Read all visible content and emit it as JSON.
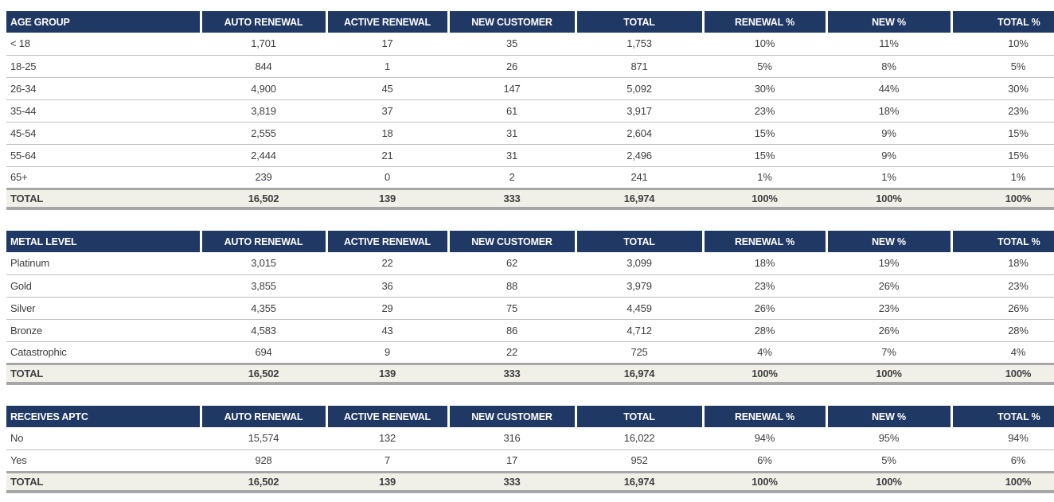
{
  "colors": {
    "header_bg": "#1F3864",
    "header_text": "#FFFFFF",
    "body_text": "#3F3F3F",
    "thin_line": "#BFBFBF",
    "thick_line": "#A6A6A6",
    "total_row_bg": "#F0EFE8"
  },
  "value_columns": [
    "AUTO RENEWAL",
    "ACTIVE RENEWAL",
    "NEW CUSTOMER",
    "TOTAL",
    "RENEWAL %",
    "NEW %",
    "TOTAL %"
  ],
  "tables": [
    {
      "label": "AGE GROUP",
      "rows": [
        {
          "label": "< 18",
          "values": [
            "1,701",
            "17",
            "35",
            "1,753",
            "10%",
            "11%",
            "10%"
          ]
        },
        {
          "label": "18-25",
          "values": [
            "844",
            "1",
            "26",
            "871",
            "5%",
            "8%",
            "5%"
          ]
        },
        {
          "label": "26-34",
          "values": [
            "4,900",
            "45",
            "147",
            "5,092",
            "30%",
            "44%",
            "30%"
          ]
        },
        {
          "label": "35-44",
          "values": [
            "3,819",
            "37",
            "61",
            "3,917",
            "23%",
            "18%",
            "23%"
          ]
        },
        {
          "label": "45-54",
          "values": [
            "2,555",
            "18",
            "31",
            "2,604",
            "15%",
            "9%",
            "15%"
          ]
        },
        {
          "label": "55-64",
          "values": [
            "2,444",
            "21",
            "31",
            "2,496",
            "15%",
            "9%",
            "15%"
          ]
        },
        {
          "label": "65+",
          "values": [
            "239",
            "0",
            "2",
            "241",
            "1%",
            "1%",
            "1%"
          ]
        }
      ],
      "total": {
        "label": "TOTAL",
        "values": [
          "16,502",
          "139",
          "333",
          "16,974",
          "100%",
          "100%",
          "100%"
        ]
      }
    },
    {
      "label": "METAL LEVEL",
      "rows": [
        {
          "label": "Platinum",
          "values": [
            "3,015",
            "22",
            "62",
            "3,099",
            "18%",
            "19%",
            "18%"
          ]
        },
        {
          "label": "Gold",
          "values": [
            "3,855",
            "36",
            "88",
            "3,979",
            "23%",
            "26%",
            "23%"
          ]
        },
        {
          "label": "Silver",
          "values": [
            "4,355",
            "29",
            "75",
            "4,459",
            "26%",
            "23%",
            "26%"
          ]
        },
        {
          "label": "Bronze",
          "values": [
            "4,583",
            "43",
            "86",
            "4,712",
            "28%",
            "26%",
            "28%"
          ]
        },
        {
          "label": "Catastrophic",
          "values": [
            "694",
            "9",
            "22",
            "725",
            "4%",
            "7%",
            "4%"
          ]
        }
      ],
      "total": {
        "label": "TOTAL",
        "values": [
          "16,502",
          "139",
          "333",
          "16,974",
          "100%",
          "100%",
          "100%"
        ]
      }
    },
    {
      "label": "RECEIVES APTC",
      "rows": [
        {
          "label": "No",
          "values": [
            "15,574",
            "132",
            "316",
            "16,022",
            "94%",
            "95%",
            "94%"
          ]
        },
        {
          "label": "Yes",
          "values": [
            "928",
            "7",
            "17",
            "952",
            "6%",
            "5%",
            "6%"
          ]
        }
      ],
      "total": {
        "label": "TOTAL",
        "values": [
          "16,502",
          "139",
          "333",
          "16,974",
          "100%",
          "100%",
          "100%"
        ]
      }
    }
  ]
}
